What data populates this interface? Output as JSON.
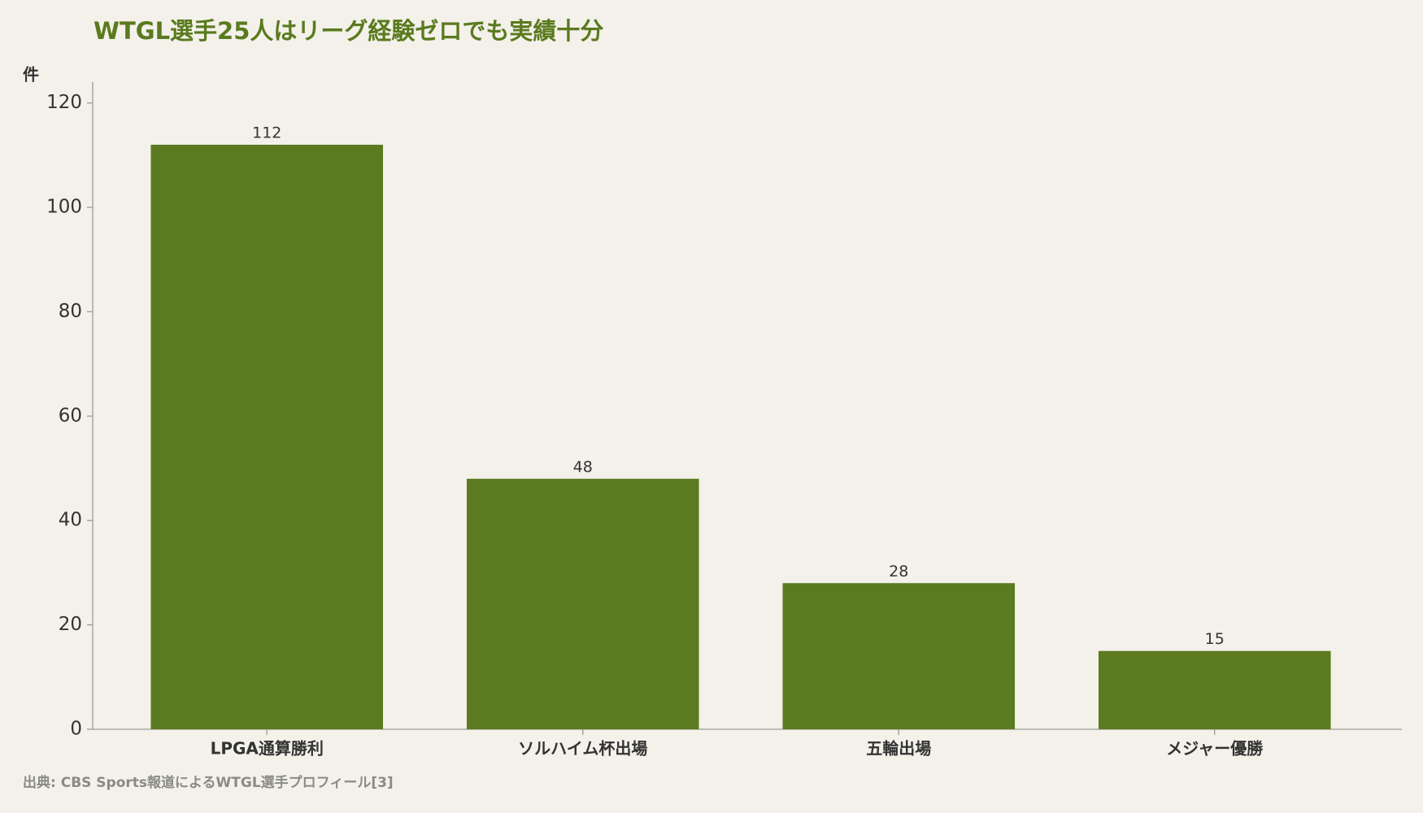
{
  "chart_data": {
    "type": "bar",
    "title": "WTGL選手25人はリーグ経験ゼロでも実績十分",
    "y_label": "件",
    "source": "出典: CBS Sports報道によるWTGL選手プロフィール[3]",
    "categories": [
      "LPGA通算勝利",
      "ソルハイム杯出場",
      "五輪出場",
      "メジャー優勝"
    ],
    "values": [
      112,
      48,
      28,
      15
    ],
    "color": "#5c7a20",
    "ylim": [
      0,
      124
    ],
    "yticks": [
      0,
      20,
      40,
      60,
      80,
      100,
      120
    ],
    "grid": false
  }
}
